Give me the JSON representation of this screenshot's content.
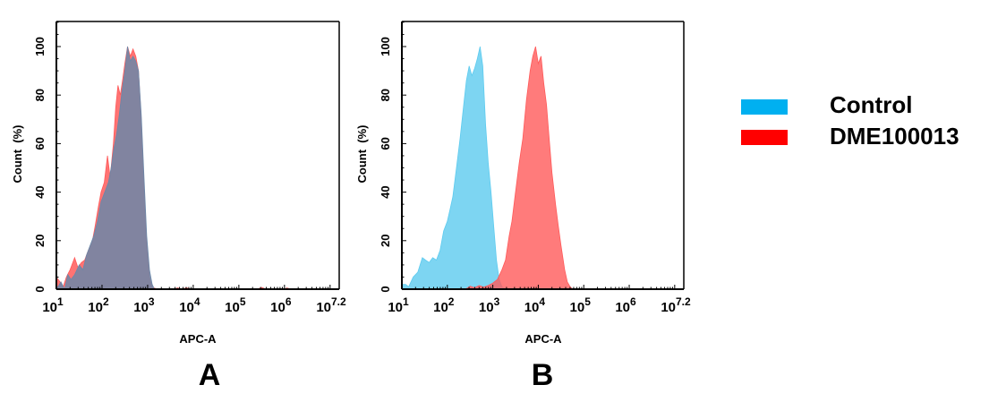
{
  "chart_data": [
    {
      "type": "area",
      "panel_label": "A",
      "title": "",
      "xlabel": "APC-A",
      "ylabel": "Count  (%)",
      "xscale": "log10",
      "xlim_log10": [
        1,
        7.2
      ],
      "ylim": [
        0,
        110
      ],
      "x_tick_labels": [
        {
          "base": "10",
          "exp": "1",
          "pos": 1
        },
        {
          "base": "10",
          "exp": "2",
          "pos": 2
        },
        {
          "base": "10",
          "exp": "3",
          "pos": 3
        },
        {
          "base": "10",
          "exp": "4",
          "pos": 4
        },
        {
          "base": "10",
          "exp": "5",
          "pos": 5
        },
        {
          "base": "10",
          "exp": "6",
          "pos": 6
        },
        {
          "base": "10",
          "exp": "7.2",
          "pos": 7.2
        }
      ],
      "y_ticks": [
        0,
        20,
        40,
        60,
        80,
        100
      ],
      "grid": false,
      "series": [
        {
          "name": "DME100013",
          "color": "#ff5a5a",
          "opacity": 0.85,
          "points": [
            [
              1.0,
              5
            ],
            [
              1.08,
              3
            ],
            [
              1.15,
              1
            ],
            [
              1.22,
              5
            ],
            [
              1.3,
              8
            ],
            [
              1.4,
              13
            ],
            [
              1.47,
              9
            ],
            [
              1.55,
              11
            ],
            [
              1.62,
              12
            ],
            [
              1.7,
              16
            ],
            [
              1.78,
              19
            ],
            [
              1.85,
              26
            ],
            [
              1.92,
              34
            ],
            [
              1.98,
              40
            ],
            [
              2.05,
              44
            ],
            [
              2.12,
              55
            ],
            [
              2.18,
              46
            ],
            [
              2.25,
              60
            ],
            [
              2.3,
              75
            ],
            [
              2.35,
              84
            ],
            [
              2.4,
              80
            ],
            [
              2.45,
              86
            ],
            [
              2.5,
              93
            ],
            [
              2.56,
              100
            ],
            [
              2.62,
              96
            ],
            [
              2.68,
              99
            ],
            [
              2.74,
              96
            ],
            [
              2.8,
              90
            ],
            [
              2.86,
              70
            ],
            [
              2.92,
              42
            ],
            [
              2.98,
              18
            ],
            [
              3.04,
              5
            ],
            [
              3.1,
              1
            ],
            [
              3.2,
              0
            ],
            [
              3.6,
              0
            ],
            [
              3.65,
              0.6
            ],
            [
              3.75,
              0
            ],
            [
              3.85,
              0.6
            ],
            [
              3.95,
              0
            ],
            [
              5.4,
              0
            ],
            [
              5.5,
              0.7
            ],
            [
              5.6,
              0
            ],
            [
              6.0,
              0
            ],
            [
              6.05,
              0.5
            ],
            [
              6.15,
              0
            ],
            [
              7.2,
              0
            ]
          ]
        },
        {
          "name": "Control",
          "color": "#6b87a8",
          "opacity": 0.85,
          "points": [
            [
              1.0,
              0
            ],
            [
              1.1,
              3
            ],
            [
              1.18,
              0
            ],
            [
              1.25,
              6
            ],
            [
              1.32,
              4
            ],
            [
              1.4,
              6
            ],
            [
              1.5,
              10
            ],
            [
              1.58,
              8
            ],
            [
              1.66,
              14
            ],
            [
              1.74,
              18
            ],
            [
              1.82,
              22
            ],
            [
              1.9,
              28
            ],
            [
              1.98,
              36
            ],
            [
              2.06,
              40
            ],
            [
              2.14,
              44
            ],
            [
              2.2,
              50
            ],
            [
              2.26,
              58
            ],
            [
              2.32,
              64
            ],
            [
              2.38,
              72
            ],
            [
              2.44,
              82
            ],
            [
              2.5,
              90
            ],
            [
              2.56,
              100
            ],
            [
              2.62,
              94
            ],
            [
              2.68,
              96
            ],
            [
              2.74,
              94
            ],
            [
              2.8,
              90
            ],
            [
              2.86,
              72
            ],
            [
              2.92,
              46
            ],
            [
              2.98,
              22
            ],
            [
              3.04,
              8
            ],
            [
              3.1,
              2
            ],
            [
              3.15,
              0
            ],
            [
              7.2,
              0
            ]
          ]
        }
      ]
    },
    {
      "type": "area",
      "panel_label": "B",
      "title": "",
      "xlabel": "APC-A",
      "ylabel": "Count  (%)",
      "xscale": "log10",
      "xlim_log10": [
        1,
        7.2
      ],
      "ylim": [
        0,
        110
      ],
      "x_tick_labels": [
        {
          "base": "10",
          "exp": "1",
          "pos": 1
        },
        {
          "base": "10",
          "exp": "2",
          "pos": 2
        },
        {
          "base": "10",
          "exp": "3",
          "pos": 3
        },
        {
          "base": "10",
          "exp": "4",
          "pos": 4
        },
        {
          "base": "10",
          "exp": "5",
          "pos": 5
        },
        {
          "base": "10",
          "exp": "6",
          "pos": 6
        },
        {
          "base": "10",
          "exp": "7.2",
          "pos": 7.2
        }
      ],
      "y_ticks": [
        0,
        20,
        40,
        60,
        80,
        100
      ],
      "grid": false,
      "series": [
        {
          "name": "Control",
          "color": "#5dcbef",
          "opacity": 0.8,
          "points": [
            [
              1.0,
              2
            ],
            [
              1.08,
              2
            ],
            [
              1.15,
              1
            ],
            [
              1.25,
              5
            ],
            [
              1.35,
              7
            ],
            [
              1.45,
              13
            ],
            [
              1.52,
              12
            ],
            [
              1.6,
              11
            ],
            [
              1.68,
              13
            ],
            [
              1.76,
              12
            ],
            [
              1.84,
              16
            ],
            [
              1.92,
              24
            ],
            [
              2.0,
              28
            ],
            [
              2.06,
              33
            ],
            [
              2.12,
              38
            ],
            [
              2.2,
              50
            ],
            [
              2.28,
              62
            ],
            [
              2.36,
              76
            ],
            [
              2.42,
              86
            ],
            [
              2.48,
              92
            ],
            [
              2.54,
              88
            ],
            [
              2.6,
              91
            ],
            [
              2.66,
              95
            ],
            [
              2.72,
              100
            ],
            [
              2.78,
              92
            ],
            [
              2.84,
              68
            ],
            [
              2.9,
              52
            ],
            [
              2.96,
              40
            ],
            [
              3.02,
              26
            ],
            [
              3.08,
              12
            ],
            [
              3.14,
              4
            ],
            [
              3.2,
              1
            ],
            [
              3.3,
              0
            ],
            [
              7.2,
              0
            ]
          ]
        },
        {
          "name": "DME100013",
          "color": "#ff5a5a",
          "opacity": 0.8,
          "points": [
            [
              1.0,
              0
            ],
            [
              2.4,
              0
            ],
            [
              2.5,
              1.2
            ],
            [
              2.6,
              0.6
            ],
            [
              2.7,
              1.5
            ],
            [
              2.8,
              0.8
            ],
            [
              2.9,
              1.5
            ],
            [
              3.0,
              2.5
            ],
            [
              3.1,
              4
            ],
            [
              3.2,
              8
            ],
            [
              3.28,
              12
            ],
            [
              3.36,
              22
            ],
            [
              3.42,
              28
            ],
            [
              3.5,
              40
            ],
            [
              3.58,
              52
            ],
            [
              3.66,
              62
            ],
            [
              3.74,
              78
            ],
            [
              3.82,
              90
            ],
            [
              3.88,
              96
            ],
            [
              3.94,
              100
            ],
            [
              4.0,
              93
            ],
            [
              4.06,
              96
            ],
            [
              4.12,
              85
            ],
            [
              4.18,
              76
            ],
            [
              4.24,
              62
            ],
            [
              4.3,
              48
            ],
            [
              4.38,
              35
            ],
            [
              4.44,
              26
            ],
            [
              4.5,
              18
            ],
            [
              4.58,
              8
            ],
            [
              4.64,
              3
            ],
            [
              4.7,
              1
            ],
            [
              4.76,
              0
            ],
            [
              7.2,
              0
            ]
          ]
        }
      ]
    }
  ],
  "legend": {
    "items": [
      {
        "label": "Control",
        "color": "#00b0f0"
      },
      {
        "label": "DME100013",
        "color": "#ff0000"
      }
    ]
  },
  "panels": {
    "a_label": "A",
    "b_label": "B"
  },
  "axis": {
    "xlabel": "APC-A",
    "ylabel": "Count  (%)"
  }
}
